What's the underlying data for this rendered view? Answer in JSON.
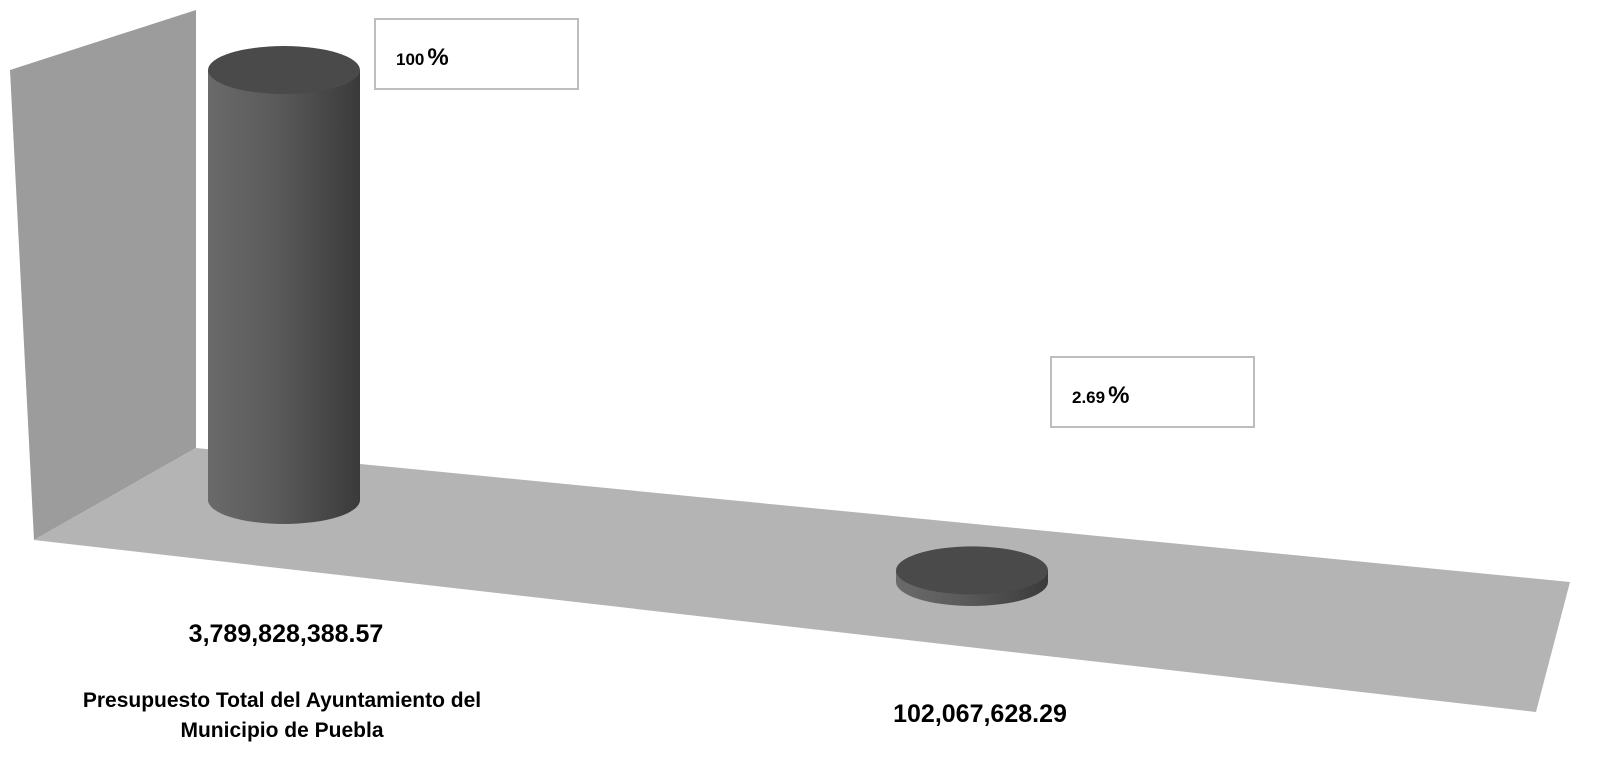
{
  "chart_data": {
    "type": "bar",
    "style": "3d-cylinder",
    "categories": [
      "Presupuesto Total del Ayuntamiento del Municipio de Puebla",
      ""
    ],
    "values": [
      3789828388.57,
      102067628.29
    ],
    "value_labels": [
      "3,789,828,388.57",
      "102,067,628.29"
    ],
    "percent_labels": [
      {
        "number": "100",
        "sign": "%"
      },
      {
        "number": "2.69",
        "sign": "%"
      }
    ],
    "grid": false,
    "legend": "none",
    "colors": {
      "bar": "#555555",
      "bar_top": "#4a4a4a",
      "floor": "#b4b4b4",
      "wall": "#9c9c9c",
      "box_border": "#bdbdbd"
    }
  }
}
